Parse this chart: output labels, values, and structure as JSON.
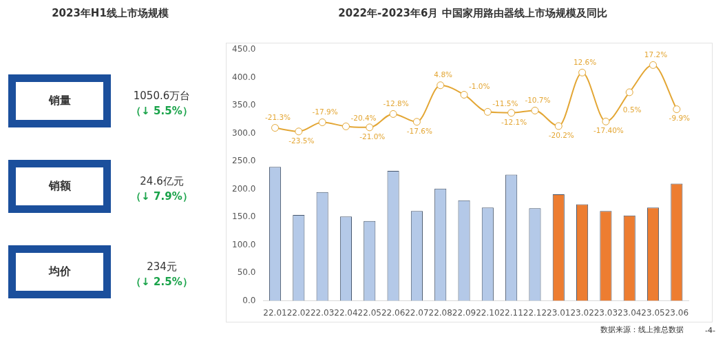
{
  "chart_data": [
    {
      "type": "other",
      "title": "2023年H1线上市场规模",
      "annotations": [
        "销量",
        "1050.6万台",
        "（↓ 5.5%）",
        "销额",
        "24.6亿元",
        "（↓ 7.9%）",
        "均价",
        "234元",
        "（↓ 2.5%）"
      ]
    },
    {
      "type": "bar",
      "title": "2022年-2023年6月  中国家用路由器线上市场规模及同比",
      "categories": [
        "22.01",
        "22.02",
        "22.03",
        "22.04",
        "22.05",
        "22.06",
        "22.07",
        "22.08",
        "22.09",
        "22.10",
        "22.11",
        "22.12",
        "23.01",
        "23.02",
        "23.03",
        "23.04",
        "23.05",
        "23.06"
      ],
      "series": [
        {
          "type": "bar",
          "values": [
            240,
            154,
            195,
            151,
            143,
            233,
            161,
            201,
            180,
            167,
            226,
            166,
            191,
            173,
            161,
            153,
            167,
            210
          ],
          "colors": [
            "#b4c9e8",
            "#b4c9e8",
            "#b4c9e8",
            "#b4c9e8",
            "#b4c9e8",
            "#b4c9e8",
            "#b4c9e8",
            "#b4c9e8",
            "#b4c9e8",
            "#b4c9e8",
            "#b4c9e8",
            "#b4c9e8",
            "#ed7d31",
            "#ed7d31",
            "#ed7d31",
            "#ed7d31",
            "#ed7d31",
            "#ed7d31"
          ]
        },
        {
          "type": "line",
          "axis": "y2",
          "color": "#e3a634",
          "marker": "circle",
          "values": [
            -21.3,
            -23.5,
            -17.9,
            -20.4,
            -21.0,
            -12.8,
            -17.6,
            4.8,
            -1.0,
            -11.5,
            -12.1,
            -10.7,
            -20.2,
            12.6,
            -17.4,
            0.5,
            17.2,
            -9.9
          ],
          "value_labels": [
            "-21.3%",
            "-23.5%",
            "-17.9%",
            "-20.4%",
            "-21.0%",
            "-12.8%",
            "-17.6%",
            "4.8%",
            "-1.0%",
            "-11.5%",
            "-12.1%",
            "-10.7%",
            "-20.2%",
            "12.6%",
            "-17.40%",
            "0.5%",
            "17.2%",
            "-9.9%"
          ]
        }
      ],
      "ylim": [
        0,
        450
      ],
      "yticks": [
        {
          "value": 0,
          "label": "0.0"
        },
        {
          "value": 50,
          "label": "50.0"
        },
        {
          "value": 100,
          "label": "100.0"
        },
        {
          "value": 150,
          "label": "150.0"
        },
        {
          "value": 200,
          "label": "200.0"
        },
        {
          "value": 250,
          "label": "250.0"
        },
        {
          "value": 300,
          "label": "300.0"
        },
        {
          "value": 350,
          "label": "350.0"
        },
        {
          "value": 400,
          "label": "400.0"
        },
        {
          "value": 450,
          "label": "450.0"
        }
      ],
      "annotations": [
        "数据来源：线上推总数据",
        "-4-"
      ]
    }
  ]
}
